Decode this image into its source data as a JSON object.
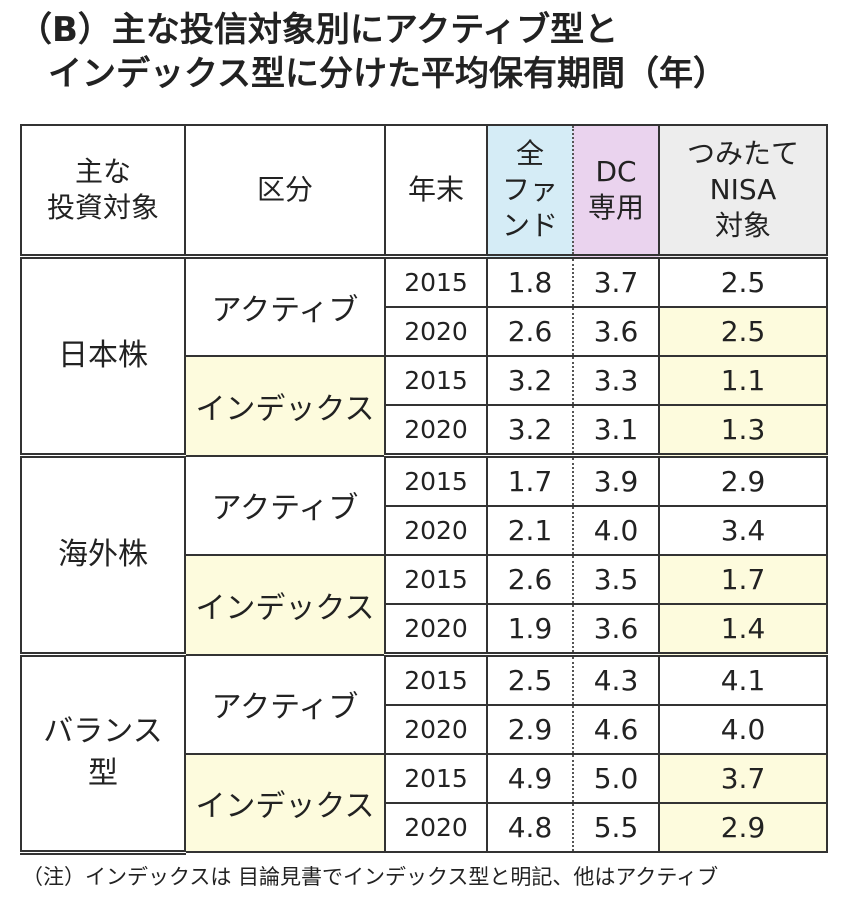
{
  "title": {
    "line1": "（B）主な投信対象別にアクティブ型と",
    "line2": "インデックス型に分けた平均保有期間（年）"
  },
  "header": {
    "target": [
      "主な",
      "投資対象"
    ],
    "kubun": "区分",
    "year": "年末",
    "all_funds": [
      "全",
      "ファ",
      "ンド"
    ],
    "dc": [
      "DC",
      "専用"
    ],
    "tsumitate": [
      "つみたて",
      "NISA",
      "対象"
    ]
  },
  "groups": [
    {
      "name": [
        "日本株"
      ],
      "rows": [
        {
          "kubun": "アクティブ",
          "year": "2015",
          "all": "1.8",
          "dc": "3.7",
          "tsumi": "2.5",
          "hl": false
        },
        {
          "kubun": "",
          "year": "2020",
          "all": "2.6",
          "dc": "3.6",
          "tsumi": "2.5",
          "hl": true
        },
        {
          "kubun": "インデックス",
          "year": "2015",
          "all": "3.2",
          "dc": "3.3",
          "tsumi": "1.1",
          "hl": true
        },
        {
          "kubun": "",
          "year": "2020",
          "all": "3.2",
          "dc": "3.1",
          "tsumi": "1.3",
          "hl": true
        }
      ]
    },
    {
      "name": [
        "海外株"
      ],
      "rows": [
        {
          "kubun": "アクティブ",
          "year": "2015",
          "all": "1.7",
          "dc": "3.9",
          "tsumi": "2.9",
          "hl": false
        },
        {
          "kubun": "",
          "year": "2020",
          "all": "2.1",
          "dc": "4.0",
          "tsumi": "3.4",
          "hl": false
        },
        {
          "kubun": "インデックス",
          "year": "2015",
          "all": "2.6",
          "dc": "3.5",
          "tsumi": "1.7",
          "hl": true
        },
        {
          "kubun": "",
          "year": "2020",
          "all": "1.9",
          "dc": "3.6",
          "tsumi": "1.4",
          "hl": true
        }
      ]
    },
    {
      "name": [
        "バランス",
        "型"
      ],
      "rows": [
        {
          "kubun": "アクティブ",
          "year": "2015",
          "all": "2.5",
          "dc": "4.3",
          "tsumi": "4.1",
          "hl": false
        },
        {
          "kubun": "",
          "year": "2020",
          "all": "2.9",
          "dc": "4.6",
          "tsumi": "4.0",
          "hl": false
        },
        {
          "kubun": "インデックス",
          "year": "2015",
          "all": "4.9",
          "dc": "5.0",
          "tsumi": "3.7",
          "hl": true
        },
        {
          "kubun": "",
          "year": "2020",
          "all": "4.8",
          "dc": "5.5",
          "tsumi": "2.9",
          "hl": true
        }
      ]
    }
  ],
  "note": "（注）インデックスは 目論見書でインデックス型と明記、他はアクティブ",
  "colors": {
    "all_funds_header": "#d5ecf6",
    "dc_header": "#ead3ee",
    "tsumitate_header": "#ededed",
    "highlight": "#fdfbdd"
  }
}
